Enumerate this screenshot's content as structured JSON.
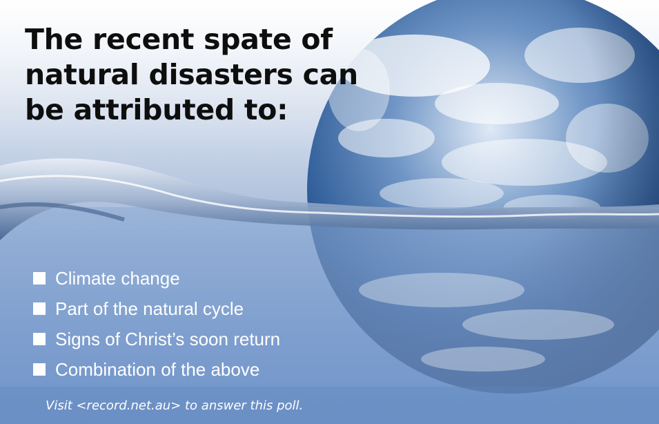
{
  "poll": {
    "question_lines": [
      "The recent spate of",
      "natural disasters can",
      "be attributed to:"
    ],
    "options": [
      "Climate change",
      "Part of the natural cycle",
      "Signs of Christ’s soon return",
      "Combination of the above"
    ],
    "footnote": "Visit <record.net.au> to answer this poll."
  },
  "colors": {
    "headline": "#0e0e0e",
    "option_text": "#ffffff",
    "checkbox_fill": "#ffffff",
    "water_dark": "#5f86bd",
    "ocean_blue": "#2f5e9a"
  },
  "icons": {
    "checkbox": "checkbox-square-icon",
    "image": "earth-globe-in-water-image"
  }
}
